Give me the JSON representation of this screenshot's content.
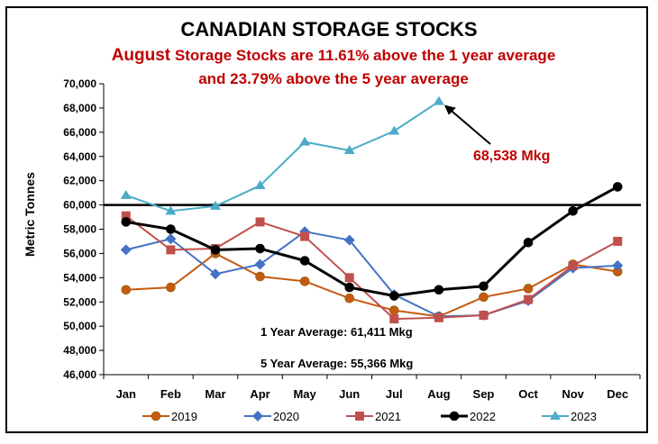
{
  "title": "CANADIAN STORAGE STOCKS",
  "subtitle": {
    "month": "August",
    "line1_rest": " Storage Stocks are 11.61% above the 1 year average",
    "line2": "and 23.79% above the 5 year average"
  },
  "colors": {
    "2019": "#c55a11",
    "2020": "#4472c4",
    "2021": "#c0504d",
    "2022": "#000000",
    "2023": "#4bacc6",
    "highlight": "#c00000"
  },
  "chart_data": {
    "type": "line",
    "title": "CANADIAN STORAGE STOCKS",
    "ylabel": "Metric Tonnes",
    "xlabel": "",
    "ylim": [
      46000,
      70000
    ],
    "ytick_step": 2000,
    "ytick_labels": [
      "46,000",
      "48,000",
      "50,000",
      "52,000",
      "54,000",
      "56,000",
      "58,000",
      "60,000",
      "62,000",
      "64,000",
      "66,000",
      "68,000",
      "70,000"
    ],
    "categories": [
      "Jan",
      "Feb",
      "Mar",
      "Apr",
      "May",
      "Jun",
      "Jul",
      "Aug",
      "Sep",
      "Oct",
      "Nov",
      "Dec"
    ],
    "series": [
      {
        "name": "2019",
        "marker": "circle",
        "values": [
          53000,
          53200,
          56000,
          54100,
          53700,
          52300,
          51300,
          50800,
          52400,
          53100,
          55100,
          54500
        ]
      },
      {
        "name": "2020",
        "marker": "diamond",
        "values": [
          56300,
          57200,
          54300,
          55100,
          57800,
          57100,
          52600,
          50800,
          50900,
          52100,
          54800,
          55000
        ]
      },
      {
        "name": "2021",
        "marker": "square",
        "values": [
          59100,
          56300,
          56400,
          58600,
          57400,
          54000,
          50600,
          50700,
          50900,
          52200,
          55000,
          57000
        ]
      },
      {
        "name": "2022",
        "marker": "circle",
        "values": [
          58600,
          58000,
          56300,
          56400,
          55400,
          53200,
          52500,
          53000,
          53300,
          56900,
          59500,
          61500
        ]
      },
      {
        "name": "2023",
        "marker": "triangle",
        "values": [
          60800,
          59500,
          59900,
          61600,
          65200,
          64500,
          66100,
          68538,
          null,
          null,
          null,
          null
        ]
      }
    ],
    "reference_line": 60000,
    "annotations": [
      {
        "text": "68,538 Mkg"
      },
      {
        "text": "1 Year Average: 61,411 Mkg"
      },
      {
        "text": "5 Year Average: 55,366 Mkg"
      }
    ],
    "grid": false,
    "legend_position": "bottom"
  }
}
